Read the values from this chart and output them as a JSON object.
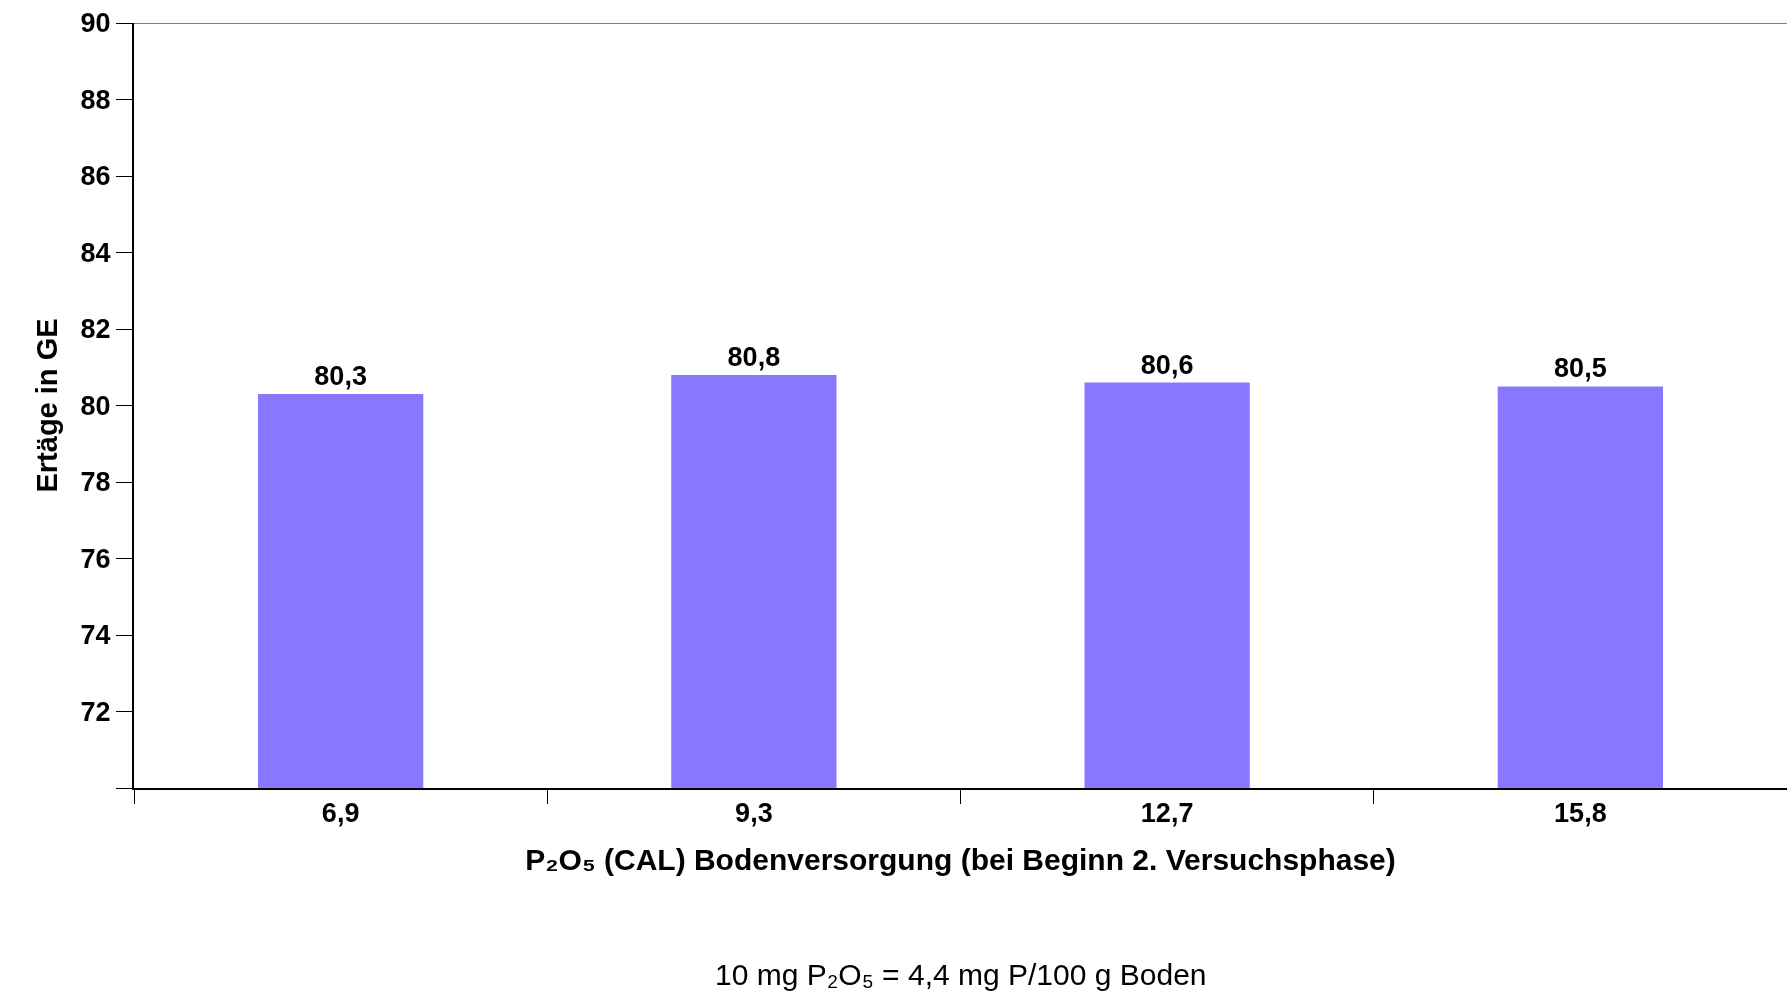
{
  "chart_data": {
    "type": "bar",
    "categories": [
      "6,9",
      "9,3",
      "12,7",
      "15,8"
    ],
    "values": [
      80.3,
      80.8,
      80.6,
      80.5
    ],
    "value_labels": [
      "80,3",
      "80,8",
      "80,6",
      "80,5"
    ],
    "color": "#8877ff",
    "ylim": [
      70,
      90
    ],
    "yticks": [
      {
        "value": 70,
        "label": null
      },
      72,
      74,
      76,
      78,
      80,
      82,
      84,
      86,
      88,
      90
    ],
    "ylabel": "Ertäge in GE",
    "xlabel": "P₂O₅ (CAL) Bodenversorgung (bei Beginn 2. Versuchsphase)",
    "annotations": [
      "10 mg P₂O₅ = 4,4 mg P/100 g Boden"
    ],
    "grid": false,
    "legend": false
  }
}
